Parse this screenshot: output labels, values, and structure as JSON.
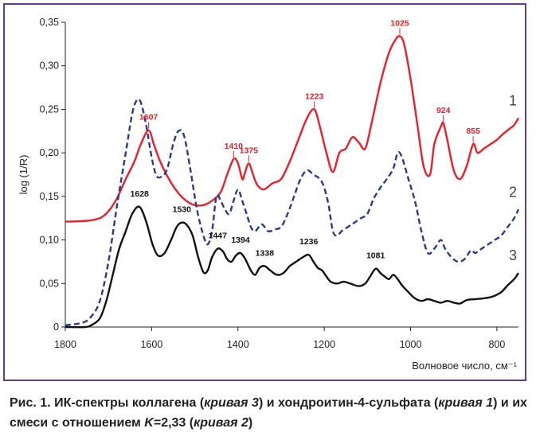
{
  "chart_data": {
    "type": "line",
    "xlabel": "Волновое число, см⁻¹",
    "ylabel": "log (1/R)",
    "xlim": [
      1800,
      750
    ],
    "ylim": [
      0,
      0.35
    ],
    "x_ticks": [
      1800,
      1600,
      1400,
      1200,
      1000,
      800
    ],
    "x_tick_labels": [
      "1800",
      "1600",
      "1400",
      "1200",
      "1000",
      "800"
    ],
    "y_ticks": [
      0,
      0.05,
      0.1,
      0.15,
      0.2,
      0.25,
      0.3,
      0.35
    ],
    "y_tick_labels": [
      "0",
      "0,05",
      "0,10",
      "0,15",
      "0,20",
      "0,25",
      "0,30",
      "0,35"
    ],
    "grid": false,
    "colors": {
      "curve_1": "#e8202a",
      "curve_2": "#2a3a8f",
      "curve_3": "#111111",
      "frame": "#5b3f8c"
    },
    "series": [
      {
        "name": "1",
        "style": "solid",
        "points": [
          [
            1800,
            0.121
          ],
          [
            1750,
            0.122
          ],
          [
            1720,
            0.125
          ],
          [
            1700,
            0.133
          ],
          [
            1680,
            0.148
          ],
          [
            1660,
            0.17
          ],
          [
            1640,
            0.19
          ],
          [
            1625,
            0.21
          ],
          [
            1607,
            0.226
          ],
          [
            1595,
            0.21
          ],
          [
            1580,
            0.19
          ],
          [
            1560,
            0.17
          ],
          [
            1540,
            0.155
          ],
          [
            1520,
            0.145
          ],
          [
            1500,
            0.14
          ],
          [
            1480,
            0.14
          ],
          [
            1460,
            0.145
          ],
          [
            1440,
            0.155
          ],
          [
            1425,
            0.175
          ],
          [
            1410,
            0.193
          ],
          [
            1400,
            0.188
          ],
          [
            1390,
            0.17
          ],
          [
            1385,
            0.175
          ],
          [
            1375,
            0.188
          ],
          [
            1365,
            0.175
          ],
          [
            1355,
            0.163
          ],
          [
            1340,
            0.158
          ],
          [
            1320,
            0.165
          ],
          [
            1300,
            0.17
          ],
          [
            1280,
            0.19
          ],
          [
            1260,
            0.215
          ],
          [
            1240,
            0.24
          ],
          [
            1223,
            0.25
          ],
          [
            1210,
            0.23
          ],
          [
            1195,
            0.2
          ],
          [
            1180,
            0.178
          ],
          [
            1165,
            0.2
          ],
          [
            1150,
            0.205
          ],
          [
            1135,
            0.218
          ],
          [
            1120,
            0.212
          ],
          [
            1105,
            0.205
          ],
          [
            1090,
            0.235
          ],
          [
            1070,
            0.28
          ],
          [
            1050,
            0.315
          ],
          [
            1035,
            0.33
          ],
          [
            1025,
            0.334
          ],
          [
            1015,
            0.325
          ],
          [
            1000,
            0.285
          ],
          [
            985,
            0.235
          ],
          [
            970,
            0.185
          ],
          [
            955,
            0.175
          ],
          [
            945,
            0.21
          ],
          [
            930,
            0.23
          ],
          [
            924,
            0.234
          ],
          [
            915,
            0.215
          ],
          [
            900,
            0.18
          ],
          [
            885,
            0.17
          ],
          [
            870,
            0.185
          ],
          [
            855,
            0.21
          ],
          [
            845,
            0.2
          ],
          [
            830,
            0.205
          ],
          [
            815,
            0.21
          ],
          [
            800,
            0.215
          ],
          [
            785,
            0.222
          ],
          [
            770,
            0.228
          ],
          [
            760,
            0.232
          ],
          [
            750,
            0.24
          ]
        ]
      },
      {
        "name": "2",
        "style": "dashed",
        "points": [
          [
            1800,
            0.002
          ],
          [
            1760,
            0.005
          ],
          [
            1740,
            0.012
          ],
          [
            1720,
            0.03
          ],
          [
            1700,
            0.075
          ],
          [
            1680,
            0.14
          ],
          [
            1660,
            0.2
          ],
          [
            1645,
            0.245
          ],
          [
            1635,
            0.26
          ],
          [
            1625,
            0.258
          ],
          [
            1612,
            0.23
          ],
          [
            1600,
            0.195
          ],
          [
            1590,
            0.175
          ],
          [
            1580,
            0.172
          ],
          [
            1565,
            0.18
          ],
          [
            1550,
            0.21
          ],
          [
            1538,
            0.225
          ],
          [
            1525,
            0.22
          ],
          [
            1510,
            0.18
          ],
          [
            1495,
            0.135
          ],
          [
            1480,
            0.105
          ],
          [
            1470,
            0.095
          ],
          [
            1460,
            0.11
          ],
          [
            1450,
            0.15
          ],
          [
            1440,
            0.145
          ],
          [
            1430,
            0.135
          ],
          [
            1420,
            0.13
          ],
          [
            1410,
            0.145
          ],
          [
            1400,
            0.158
          ],
          [
            1390,
            0.145
          ],
          [
            1380,
            0.13
          ],
          [
            1370,
            0.115
          ],
          [
            1360,
            0.11
          ],
          [
            1345,
            0.118
          ],
          [
            1330,
            0.11
          ],
          [
            1315,
            0.112
          ],
          [
            1300,
            0.115
          ],
          [
            1285,
            0.13
          ],
          [
            1270,
            0.15
          ],
          [
            1255,
            0.17
          ],
          [
            1240,
            0.18
          ],
          [
            1225,
            0.175
          ],
          [
            1210,
            0.17
          ],
          [
            1200,
            0.16
          ],
          [
            1190,
            0.14
          ],
          [
            1180,
            0.11
          ],
          [
            1170,
            0.105
          ],
          [
            1160,
            0.11
          ],
          [
            1145,
            0.115
          ],
          [
            1130,
            0.12
          ],
          [
            1115,
            0.125
          ],
          [
            1100,
            0.13
          ],
          [
            1085,
            0.148
          ],
          [
            1070,
            0.16
          ],
          [
            1055,
            0.17
          ],
          [
            1040,
            0.182
          ],
          [
            1030,
            0.2
          ],
          [
            1020,
            0.195
          ],
          [
            1005,
            0.17
          ],
          [
            990,
            0.145
          ],
          [
            975,
            0.11
          ],
          [
            960,
            0.085
          ],
          [
            945,
            0.09
          ],
          [
            930,
            0.1
          ],
          [
            920,
            0.09
          ],
          [
            905,
            0.08
          ],
          [
            890,
            0.075
          ],
          [
            875,
            0.078
          ],
          [
            860,
            0.088
          ],
          [
            850,
            0.085
          ],
          [
            835,
            0.09
          ],
          [
            820,
            0.095
          ],
          [
            805,
            0.1
          ],
          [
            790,
            0.105
          ],
          [
            775,
            0.115
          ],
          [
            760,
            0.125
          ],
          [
            750,
            0.135
          ]
        ]
      },
      {
        "name": "3",
        "style": "solid",
        "points": [
          [
            1800,
            0.0
          ],
          [
            1755,
            0.0
          ],
          [
            1740,
            0.002
          ],
          [
            1720,
            0.01
          ],
          [
            1705,
            0.03
          ],
          [
            1690,
            0.06
          ],
          [
            1675,
            0.09
          ],
          [
            1660,
            0.11
          ],
          [
            1645,
            0.13
          ],
          [
            1628,
            0.138
          ],
          [
            1612,
            0.12
          ],
          [
            1598,
            0.095
          ],
          [
            1585,
            0.082
          ],
          [
            1570,
            0.085
          ],
          [
            1555,
            0.1
          ],
          [
            1542,
            0.115
          ],
          [
            1530,
            0.12
          ],
          [
            1518,
            0.117
          ],
          [
            1505,
            0.105
          ],
          [
            1492,
            0.08
          ],
          [
            1480,
            0.063
          ],
          [
            1470,
            0.065
          ],
          [
            1460,
            0.08
          ],
          [
            1447,
            0.09
          ],
          [
            1435,
            0.087
          ],
          [
            1425,
            0.078
          ],
          [
            1415,
            0.075
          ],
          [
            1405,
            0.082
          ],
          [
            1394,
            0.085
          ],
          [
            1383,
            0.078
          ],
          [
            1370,
            0.065
          ],
          [
            1360,
            0.06
          ],
          [
            1350,
            0.068
          ],
          [
            1338,
            0.07
          ],
          [
            1325,
            0.065
          ],
          [
            1310,
            0.06
          ],
          [
            1295,
            0.062
          ],
          [
            1280,
            0.07
          ],
          [
            1265,
            0.075
          ],
          [
            1250,
            0.08
          ],
          [
            1236,
            0.083
          ],
          [
            1225,
            0.075
          ],
          [
            1215,
            0.068
          ],
          [
            1205,
            0.065
          ],
          [
            1195,
            0.058
          ],
          [
            1185,
            0.052
          ],
          [
            1170,
            0.05
          ],
          [
            1155,
            0.052
          ],
          [
            1140,
            0.05
          ],
          [
            1120,
            0.047
          ],
          [
            1105,
            0.05
          ],
          [
            1095,
            0.057
          ],
          [
            1081,
            0.067
          ],
          [
            1070,
            0.062
          ],
          [
            1060,
            0.058
          ],
          [
            1050,
            0.055
          ],
          [
            1040,
            0.06
          ],
          [
            1030,
            0.055
          ],
          [
            1020,
            0.048
          ],
          [
            1005,
            0.04
          ],
          [
            990,
            0.033
          ],
          [
            975,
            0.03
          ],
          [
            960,
            0.032
          ],
          [
            945,
            0.03
          ],
          [
            930,
            0.028
          ],
          [
            915,
            0.03
          ],
          [
            900,
            0.028
          ],
          [
            885,
            0.027
          ],
          [
            870,
            0.031
          ],
          [
            850,
            0.032
          ],
          [
            830,
            0.033
          ],
          [
            810,
            0.035
          ],
          [
            790,
            0.04
          ],
          [
            775,
            0.048
          ],
          [
            760,
            0.055
          ],
          [
            750,
            0.062
          ]
        ]
      }
    ],
    "annotations": [
      {
        "series": "1",
        "x": 1607,
        "y": 0.226,
        "text": "1607",
        "color": "#e8202a"
      },
      {
        "series": "1",
        "x": 1410,
        "y": 0.193,
        "text": "1410",
        "color": "#e8202a"
      },
      {
        "series": "1",
        "x": 1375,
        "y": 0.188,
        "text": "1375",
        "color": "#e8202a"
      },
      {
        "series": "1",
        "x": 1223,
        "y": 0.25,
        "text": "1223",
        "color": "#e8202a"
      },
      {
        "series": "1",
        "x": 1025,
        "y": 0.334,
        "text": "1025",
        "color": "#e8202a"
      },
      {
        "series": "1",
        "x": 924,
        "y": 0.234,
        "text": "924",
        "color": "#e8202a"
      },
      {
        "series": "1",
        "x": 855,
        "y": 0.21,
        "text": "855",
        "color": "#e8202a"
      },
      {
        "series": "3",
        "x": 1628,
        "y": 0.138,
        "text": "1628",
        "color": "#111111"
      },
      {
        "series": "3",
        "x": 1530,
        "y": 0.12,
        "text": "1530",
        "color": "#111111"
      },
      {
        "series": "3",
        "x": 1447,
        "y": 0.09,
        "text": "1447",
        "color": "#111111"
      },
      {
        "series": "3",
        "x": 1394,
        "y": 0.085,
        "text": "1394",
        "color": "#111111"
      },
      {
        "series": "3",
        "x": 1338,
        "y": 0.07,
        "text": "1338",
        "color": "#111111"
      },
      {
        "series": "3",
        "x": 1236,
        "y": 0.083,
        "text": "1236",
        "color": "#111111"
      },
      {
        "series": "3",
        "x": 1081,
        "y": 0.067,
        "text": "1081",
        "color": "#111111"
      }
    ],
    "curve_labels": [
      {
        "series": "1",
        "text": "1"
      },
      {
        "series": "2",
        "text": "2"
      },
      {
        "series": "3",
        "text": "3"
      }
    ]
  },
  "caption": {
    "part1": "Рис. 1. ИК-спектры коллагена (",
    "part2": "кривая 3",
    "part3": ") и хондроитин-4-сульфата (",
    "part4": "кривая 1",
    "part5": ") и их смеси с отношением ",
    "part6": "K",
    "part7": "=2,33 (",
    "part8": "кривая 2",
    "part9": ")"
  }
}
